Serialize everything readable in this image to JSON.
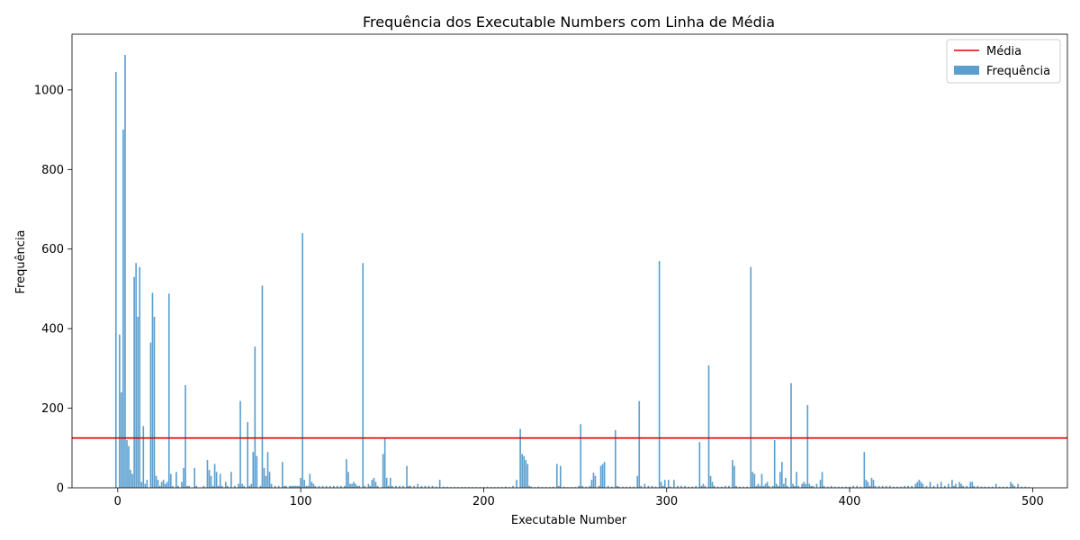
{
  "chart_data": {
    "type": "bar",
    "title": "Frequência dos Executable Numbers com Linha de Média",
    "xlabel": "Executable Number",
    "ylabel": "Frequência",
    "xlim": [
      -25,
      519
    ],
    "ylim": [
      0,
      1140
    ],
    "xticks": [
      0,
      100,
      200,
      300,
      400,
      500
    ],
    "yticks": [
      0,
      200,
      400,
      600,
      800,
      1000
    ],
    "grid": false,
    "legend_position": "top-right",
    "bar_color": "#5b9fcf",
    "mean_color": "#e00000",
    "mean_value": 125,
    "series": [
      {
        "name": "Frequência",
        "kind": "bar"
      },
      {
        "name": "Média",
        "kind": "hline"
      }
    ],
    "points": [
      [
        -1,
        1045
      ],
      [
        1,
        385
      ],
      [
        2,
        240
      ],
      [
        3,
        900
      ],
      [
        4,
        1088
      ],
      [
        5,
        120
      ],
      [
        6,
        105
      ],
      [
        7,
        45
      ],
      [
        8,
        35
      ],
      [
        9,
        530
      ],
      [
        10,
        565
      ],
      [
        11,
        430
      ],
      [
        12,
        555
      ],
      [
        13,
        15
      ],
      [
        14,
        155
      ],
      [
        15,
        10
      ],
      [
        16,
        20
      ],
      [
        18,
        365
      ],
      [
        19,
        490
      ],
      [
        20,
        430
      ],
      [
        21,
        30
      ],
      [
        22,
        20
      ],
      [
        23,
        5
      ],
      [
        24,
        15
      ],
      [
        25,
        20
      ],
      [
        26,
        10
      ],
      [
        27,
        15
      ],
      [
        28,
        488
      ],
      [
        29,
        35
      ],
      [
        30,
        5
      ],
      [
        32,
        40
      ],
      [
        33,
        5
      ],
      [
        35,
        15
      ],
      [
        36,
        50
      ],
      [
        37,
        258
      ],
      [
        38,
        5
      ],
      [
        39,
        5
      ],
      [
        42,
        50
      ],
      [
        43,
        5
      ],
      [
        47,
        5
      ],
      [
        49,
        70
      ],
      [
        50,
        45
      ],
      [
        51,
        30
      ],
      [
        52,
        5
      ],
      [
        53,
        60
      ],
      [
        54,
        40
      ],
      [
        55,
        5
      ],
      [
        56,
        35
      ],
      [
        57,
        5
      ],
      [
        59,
        15
      ],
      [
        60,
        5
      ],
      [
        62,
        40
      ],
      [
        64,
        5
      ],
      [
        66,
        10
      ],
      [
        67,
        218
      ],
      [
        68,
        10
      ],
      [
        69,
        5
      ],
      [
        71,
        165
      ],
      [
        72,
        5
      ],
      [
        73,
        10
      ],
      [
        74,
        90
      ],
      [
        75,
        355
      ],
      [
        76,
        80
      ],
      [
        78,
        5
      ],
      [
        79,
        508
      ],
      [
        80,
        50
      ],
      [
        81,
        30
      ],
      [
        82,
        90
      ],
      [
        83,
        40
      ],
      [
        84,
        10
      ],
      [
        86,
        5
      ],
      [
        88,
        5
      ],
      [
        90,
        65
      ],
      [
        91,
        5
      ],
      [
        92,
        5
      ],
      [
        94,
        5
      ],
      [
        95,
        5
      ],
      [
        96,
        5
      ],
      [
        97,
        5
      ],
      [
        98,
        5
      ],
      [
        99,
        5
      ],
      [
        100,
        25
      ],
      [
        101,
        640
      ],
      [
        102,
        20
      ],
      [
        103,
        5
      ],
      [
        104,
        5
      ],
      [
        105,
        35
      ],
      [
        106,
        15
      ],
      [
        107,
        10
      ],
      [
        108,
        5
      ],
      [
        110,
        5
      ],
      [
        112,
        5
      ],
      [
        114,
        5
      ],
      [
        116,
        5
      ],
      [
        118,
        5
      ],
      [
        120,
        5
      ],
      [
        122,
        5
      ],
      [
        124,
        5
      ],
      [
        125,
        72
      ],
      [
        126,
        40
      ],
      [
        127,
        10
      ],
      [
        128,
        10
      ],
      [
        129,
        15
      ],
      [
        130,
        10
      ],
      [
        131,
        5
      ],
      [
        132,
        5
      ],
      [
        134,
        565
      ],
      [
        135,
        5
      ],
      [
        137,
        10
      ],
      [
        138,
        5
      ],
      [
        139,
        20
      ],
      [
        140,
        25
      ],
      [
        141,
        15
      ],
      [
        142,
        5
      ],
      [
        145,
        85
      ],
      [
        146,
        125
      ],
      [
        147,
        25
      ],
      [
        148,
        5
      ],
      [
        149,
        25
      ],
      [
        150,
        5
      ],
      [
        152,
        5
      ],
      [
        154,
        5
      ],
      [
        156,
        5
      ],
      [
        158,
        55
      ],
      [
        159,
        5
      ],
      [
        160,
        5
      ],
      [
        162,
        5
      ],
      [
        164,
        10
      ],
      [
        166,
        5
      ],
      [
        168,
        5
      ],
      [
        170,
        5
      ],
      [
        172,
        5
      ],
      [
        174,
        3
      ],
      [
        176,
        20
      ],
      [
        178,
        3
      ],
      [
        180,
        3
      ],
      [
        182,
        2
      ],
      [
        184,
        2
      ],
      [
        186,
        2
      ],
      [
        188,
        2
      ],
      [
        190,
        2
      ],
      [
        192,
        2
      ],
      [
        194,
        2
      ],
      [
        196,
        2
      ],
      [
        198,
        2
      ],
      [
        200,
        2
      ],
      [
        202,
        3
      ],
      [
        204,
        2
      ],
      [
        206,
        2
      ],
      [
        208,
        2
      ],
      [
        210,
        2
      ],
      [
        212,
        3
      ],
      [
        214,
        2
      ],
      [
        216,
        5
      ],
      [
        218,
        20
      ],
      [
        220,
        148
      ],
      [
        221,
        85
      ],
      [
        222,
        80
      ],
      [
        223,
        70
      ],
      [
        224,
        60
      ],
      [
        225,
        5
      ],
      [
        226,
        3
      ],
      [
        228,
        2
      ],
      [
        230,
        3
      ],
      [
        232,
        2
      ],
      [
        234,
        2
      ],
      [
        236,
        2
      ],
      [
        238,
        3
      ],
      [
        240,
        60
      ],
      [
        241,
        5
      ],
      [
        242,
        55
      ],
      [
        244,
        3
      ],
      [
        246,
        2
      ],
      [
        248,
        2
      ],
      [
        250,
        2
      ],
      [
        252,
        5
      ],
      [
        253,
        160
      ],
      [
        254,
        5
      ],
      [
        256,
        3
      ],
      [
        258,
        5
      ],
      [
        259,
        20
      ],
      [
        260,
        38
      ],
      [
        261,
        30
      ],
      [
        263,
        5
      ],
      [
        264,
        55
      ],
      [
        265,
        60
      ],
      [
        266,
        65
      ],
      [
        268,
        5
      ],
      [
        270,
        3
      ],
      [
        272,
        145
      ],
      [
        273,
        5
      ],
      [
        274,
        3
      ],
      [
        276,
        3
      ],
      [
        278,
        3
      ],
      [
        280,
        3
      ],
      [
        282,
        3
      ],
      [
        284,
        30
      ],
      [
        285,
        218
      ],
      [
        286,
        5
      ],
      [
        288,
        10
      ],
      [
        290,
        5
      ],
      [
        292,
        5
      ],
      [
        294,
        3
      ],
      [
        296,
        570
      ],
      [
        297,
        15
      ],
      [
        298,
        5
      ],
      [
        299,
        20
      ],
      [
        301,
        20
      ],
      [
        302,
        3
      ],
      [
        304,
        20
      ],
      [
        306,
        5
      ],
      [
        308,
        5
      ],
      [
        310,
        5
      ],
      [
        312,
        3
      ],
      [
        314,
        3
      ],
      [
        316,
        5
      ],
      [
        318,
        115
      ],
      [
        319,
        5
      ],
      [
        320,
        10
      ],
      [
        321,
        5
      ],
      [
        323,
        308
      ],
      [
        324,
        30
      ],
      [
        325,
        15
      ],
      [
        326,
        5
      ],
      [
        328,
        3
      ],
      [
        330,
        3
      ],
      [
        332,
        5
      ],
      [
        334,
        5
      ],
      [
        336,
        70
      ],
      [
        337,
        55
      ],
      [
        338,
        5
      ],
      [
        340,
        3
      ],
      [
        342,
        3
      ],
      [
        344,
        3
      ],
      [
        346,
        555
      ],
      [
        347,
        40
      ],
      [
        348,
        35
      ],
      [
        349,
        5
      ],
      [
        350,
        10
      ],
      [
        351,
        5
      ],
      [
        352,
        35
      ],
      [
        353,
        5
      ],
      [
        354,
        10
      ],
      [
        355,
        15
      ],
      [
        356,
        5
      ],
      [
        358,
        5
      ],
      [
        359,
        120
      ],
      [
        360,
        10
      ],
      [
        361,
        5
      ],
      [
        362,
        40
      ],
      [
        363,
        65
      ],
      [
        364,
        10
      ],
      [
        365,
        25
      ],
      [
        366,
        5
      ],
      [
        368,
        263
      ],
      [
        369,
        10
      ],
      [
        370,
        5
      ],
      [
        371,
        40
      ],
      [
        372,
        5
      ],
      [
        374,
        10
      ],
      [
        375,
        15
      ],
      [
        376,
        10
      ],
      [
        377,
        208
      ],
      [
        378,
        10
      ],
      [
        379,
        5
      ],
      [
        380,
        5
      ],
      [
        382,
        10
      ],
      [
        384,
        20
      ],
      [
        385,
        40
      ],
      [
        386,
        5
      ],
      [
        388,
        3
      ],
      [
        390,
        5
      ],
      [
        392,
        3
      ],
      [
        394,
        3
      ],
      [
        396,
        3
      ],
      [
        398,
        3
      ],
      [
        400,
        3
      ],
      [
        402,
        5
      ],
      [
        404,
        5
      ],
      [
        406,
        3
      ],
      [
        408,
        90
      ],
      [
        409,
        20
      ],
      [
        410,
        15
      ],
      [
        411,
        5
      ],
      [
        412,
        25
      ],
      [
        413,
        20
      ],
      [
        414,
        5
      ],
      [
        416,
        5
      ],
      [
        418,
        5
      ],
      [
        420,
        5
      ],
      [
        422,
        5
      ],
      [
        424,
        3
      ],
      [
        426,
        3
      ],
      [
        428,
        3
      ],
      [
        430,
        5
      ],
      [
        432,
        5
      ],
      [
        434,
        5
      ],
      [
        436,
        10
      ],
      [
        437,
        15
      ],
      [
        438,
        20
      ],
      [
        439,
        15
      ],
      [
        440,
        10
      ],
      [
        442,
        5
      ],
      [
        444,
        15
      ],
      [
        446,
        5
      ],
      [
        448,
        10
      ],
      [
        450,
        15
      ],
      [
        452,
        5
      ],
      [
        454,
        10
      ],
      [
        456,
        20
      ],
      [
        457,
        5
      ],
      [
        458,
        10
      ],
      [
        460,
        15
      ],
      [
        461,
        10
      ],
      [
        462,
        5
      ],
      [
        464,
        5
      ],
      [
        466,
        15
      ],
      [
        467,
        15
      ],
      [
        468,
        5
      ],
      [
        470,
        5
      ],
      [
        472,
        3
      ],
      [
        474,
        3
      ],
      [
        476,
        3
      ],
      [
        478,
        3
      ],
      [
        480,
        10
      ],
      [
        482,
        3
      ],
      [
        484,
        3
      ],
      [
        486,
        3
      ],
      [
        488,
        15
      ],
      [
        489,
        10
      ],
      [
        490,
        5
      ],
      [
        492,
        10
      ],
      [
        494,
        3
      ],
      [
        496,
        3
      ],
      [
        498,
        2
      ]
    ]
  }
}
